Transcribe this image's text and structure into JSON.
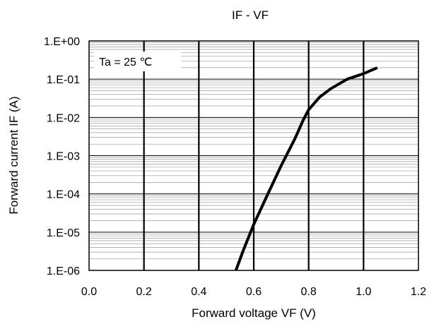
{
  "chart_data": {
    "type": "line",
    "title": "IF - VF",
    "xlabel": "Forward voltage VF (V)",
    "ylabel": "Forward current IF (A)",
    "xscale": "linear",
    "yscale": "log",
    "xlim": [
      0.0,
      1.2
    ],
    "ylim": [
      1e-06,
      1
    ],
    "x_ticks": [
      "0.0",
      "0.2",
      "0.4",
      "0.6",
      "0.8",
      "1.0",
      "1.2"
    ],
    "x_tick_values": [
      0.0,
      0.2,
      0.4,
      0.6,
      0.8,
      1.0,
      1.2
    ],
    "y_ticks": [
      "1.E-06",
      "1.E-05",
      "1.E-04",
      "1.E-03",
      "1.E-02",
      "1.E-01",
      "1.E+00"
    ],
    "y_tick_values": [
      1e-06,
      1e-05,
      0.0001,
      0.001,
      0.01,
      0.1,
      1
    ],
    "grid": true,
    "minor_grid": true,
    "annotation": "Ta = 25 ℃",
    "series": [
      {
        "points": [
          [
            0.535,
            1e-06
          ],
          [
            0.56,
            3.1e-06
          ],
          [
            0.6,
            1.6e-05
          ],
          [
            0.65,
            9.5e-05
          ],
          [
            0.7,
            0.00055
          ],
          [
            0.75,
            0.0028
          ],
          [
            0.78,
            0.0085
          ],
          [
            0.8,
            0.016
          ],
          [
            0.84,
            0.034
          ],
          [
            0.88,
            0.056
          ],
          [
            0.94,
            0.1
          ],
          [
            1.0,
            0.14
          ],
          [
            1.05,
            0.2
          ]
        ]
      }
    ],
    "colors": {
      "line": "#000000",
      "grid_major": "#000000",
      "grid_minor": "#9a9a9a",
      "frame": "#000000"
    }
  }
}
